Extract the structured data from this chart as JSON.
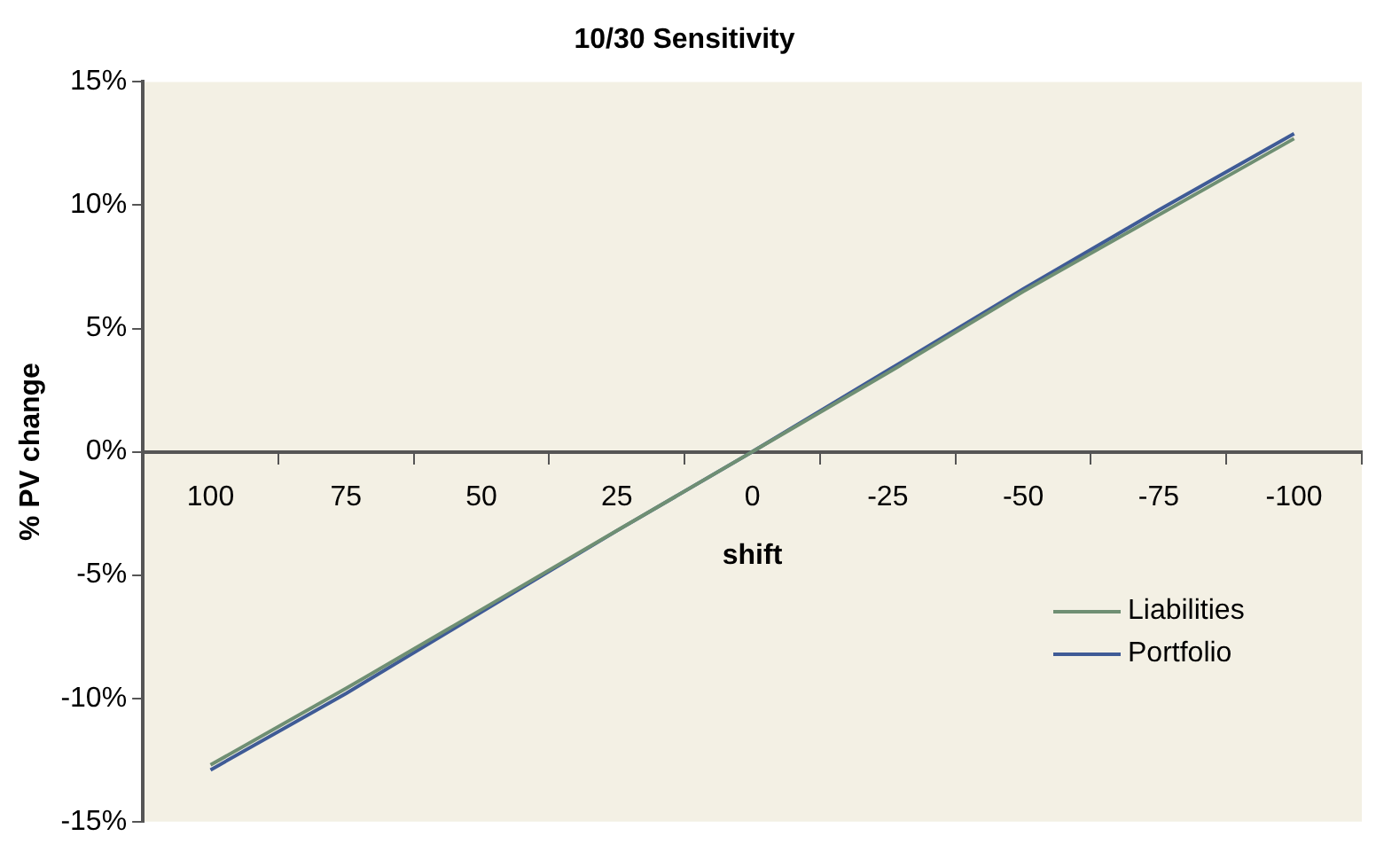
{
  "chart_data": {
    "type": "line",
    "title": "10/30 Sensitivity",
    "xlabel": "shift",
    "ylabel": "% PV change",
    "categories": [
      "100",
      "75",
      "50",
      "25",
      "0",
      "-25",
      "-50",
      "-75",
      "-100"
    ],
    "series": [
      {
        "name": "Liabilities",
        "color": "#6f8f73",
        "values": [
          -12.7,
          -9.6,
          -6.4,
          -3.2,
          0,
          3.2,
          6.5,
          9.6,
          12.7
        ]
      },
      {
        "name": "Portfolio",
        "color": "#3f5b96",
        "values": [
          -12.9,
          -9.8,
          -6.5,
          -3.2,
          0,
          3.3,
          6.6,
          9.8,
          12.9
        ]
      }
    ],
    "ylim": [
      -15,
      15
    ],
    "yticks": [
      {
        "value": -15,
        "label": "-15%"
      },
      {
        "value": -10,
        "label": "-10%"
      },
      {
        "value": -5,
        "label": "-5%"
      },
      {
        "value": 0,
        "label": "0%"
      },
      {
        "value": 5,
        "label": "5%"
      },
      {
        "value": 10,
        "label": "10%"
      },
      {
        "value": 15,
        "label": "15%"
      }
    ],
    "grid": false,
    "legend": "bottom right",
    "marker": "none",
    "line_style": "solid"
  }
}
